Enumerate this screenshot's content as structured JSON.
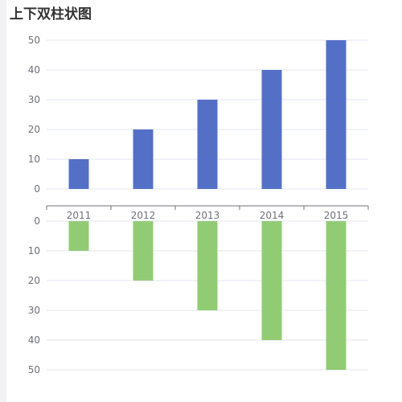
{
  "page": {
    "title": "上下双柱状图"
  },
  "chart_data": [
    {
      "type": "bar",
      "position": "top",
      "categories": [
        "2011",
        "2012",
        "2013",
        "2014",
        "2015"
      ],
      "values": [
        10,
        20,
        30,
        40,
        50
      ],
      "ylim": [
        0,
        50
      ],
      "yticks": [
        0,
        10,
        20,
        30,
        40,
        50
      ],
      "color": "#5470c6",
      "grid": true
    },
    {
      "type": "bar",
      "position": "bottom",
      "y_inverted": true,
      "categories": [
        "2011",
        "2012",
        "2013",
        "2014",
        "2015"
      ],
      "values": [
        10,
        20,
        30,
        40,
        50
      ],
      "ylim": [
        0,
        50
      ],
      "yticks": [
        0,
        10,
        20,
        30,
        40,
        50
      ],
      "color": "#91cc75",
      "grid": true
    }
  ]
}
